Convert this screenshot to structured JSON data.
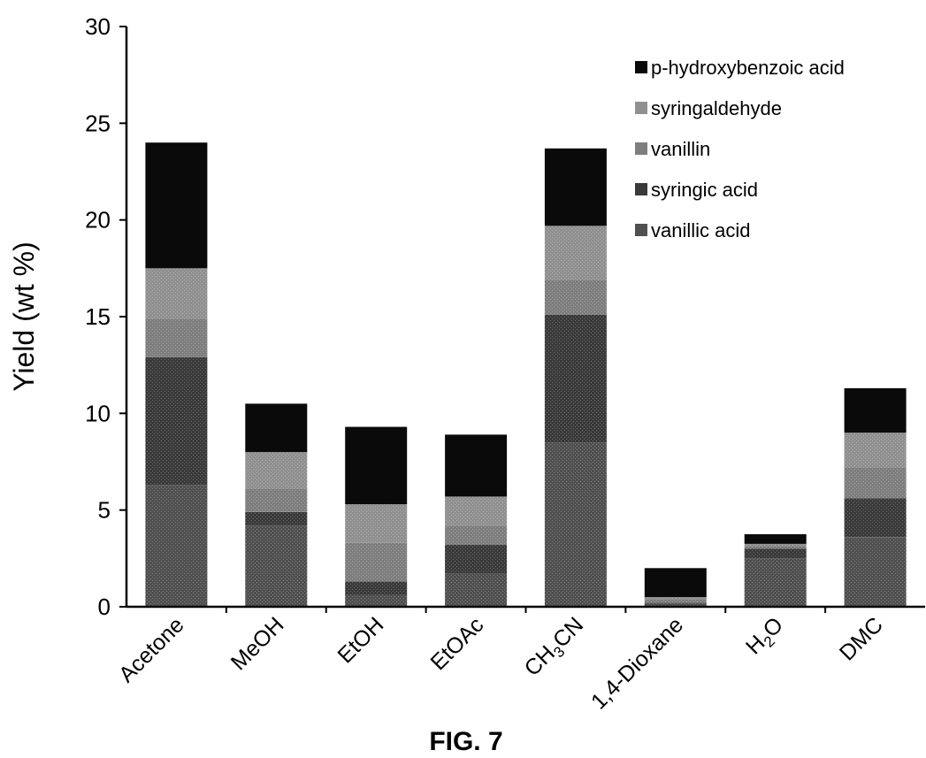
{
  "chart_data": {
    "type": "bar",
    "stacked": true,
    "title": "",
    "xlabel": "",
    "ylabel": "Yield (wt %)",
    "ylim": [
      0,
      30
    ],
    "yticks": [
      0,
      5,
      10,
      15,
      20,
      25,
      30
    ],
    "grid": false,
    "legend_position": "top-right",
    "categories": [
      "Acetone",
      "MeOH",
      "EtOH",
      "EtOAc",
      "CH3CN",
      "1,4-Dioxane",
      "H2O",
      "DMC"
    ],
    "category_labels": [
      {
        "base": "Acetone",
        "sub": "",
        "rest": ""
      },
      {
        "base": "MeOH",
        "sub": "",
        "rest": ""
      },
      {
        "base": "EtOH",
        "sub": "",
        "rest": ""
      },
      {
        "base": "EtOAc",
        "sub": "",
        "rest": ""
      },
      {
        "base": "CH",
        "sub": "3",
        "rest": "CN"
      },
      {
        "base": "1,4-Dioxane",
        "sub": "",
        "rest": ""
      },
      {
        "base": "H",
        "sub": "2",
        "rest": "O"
      },
      {
        "base": "DMC",
        "sub": "",
        "rest": ""
      }
    ],
    "series": [
      {
        "name": "vanillic acid",
        "color": "#505050",
        "values": [
          6.3,
          4.2,
          0.6,
          1.7,
          8.5,
          0.15,
          2.5,
          3.6
        ]
      },
      {
        "name": "syringic acid",
        "color": "#3a3a3a",
        "values": [
          6.6,
          0.7,
          0.7,
          1.5,
          6.6,
          0.05,
          0.5,
          2.0
        ]
      },
      {
        "name": "vanillin",
        "color": "#7e7e7e",
        "values": [
          2.0,
          1.2,
          2.0,
          1.0,
          1.8,
          0.2,
          0.15,
          1.6
        ]
      },
      {
        "name": "syringaldehyde",
        "color": "#909090",
        "values": [
          2.6,
          1.9,
          2.0,
          1.5,
          2.8,
          0.1,
          0.1,
          1.8
        ]
      },
      {
        "name": "p-hydroxybenzoic acid",
        "color": "#0a0a0a",
        "values": [
          6.5,
          2.5,
          4.0,
          3.2,
          4.0,
          1.5,
          0.5,
          2.3
        ]
      }
    ],
    "legend_order": [
      "p-hydroxybenzoic acid",
      "syringaldehyde",
      "vanillin",
      "syringic acid",
      "vanillic acid"
    ]
  },
  "caption": "FIG. 7"
}
